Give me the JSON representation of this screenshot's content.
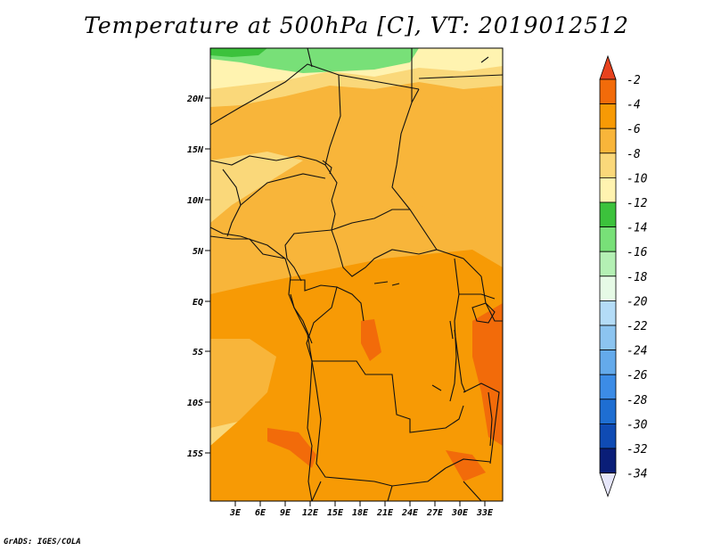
{
  "title": "Temperature at 500hPa [C], VT: 2019012512",
  "credit": "GrADS: IGES/COLA",
  "map": {
    "lat_labels": [
      "20N",
      "15N",
      "10N",
      "5N",
      "EQ",
      "5S",
      "10S",
      "15S"
    ],
    "lon_labels": [
      "3E",
      "6E",
      "9E",
      "12E",
      "15E",
      "18E",
      "21E",
      "24E",
      "27E",
      "30E",
      "33E"
    ]
  },
  "colorbar": {
    "labels": [
      "-2",
      "-4",
      "-6",
      "-8",
      "-10",
      "-12",
      "-14",
      "-16",
      "-18",
      "-20",
      "-22",
      "-24",
      "-26",
      "-28",
      "-30",
      "-32",
      "-34"
    ],
    "colors": [
      "#e8421e",
      "#f26b0a",
      "#f79a05",
      "#f8b53a",
      "#fad87a",
      "#fff3b0",
      "#3cc23c",
      "#78e078",
      "#b4f0b4",
      "#e6fae6",
      "#b4dcf7",
      "#8cc4f0",
      "#64aaeb",
      "#3c8ce6",
      "#1e6ed2",
      "#0f4bb4",
      "#0a1e78",
      "#e6e6fa"
    ]
  },
  "colors": {
    "band_warm": "#f8b53a",
    "band_hot": "#f79a05",
    "band_hotter": "#f26b0a",
    "band_cool": "#fad87a",
    "band_green": "#78e078"
  }
}
